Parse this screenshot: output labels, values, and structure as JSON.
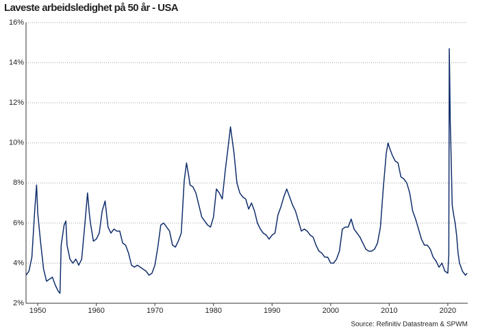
{
  "chart_data": {
    "type": "line",
    "title": "Laveste arbeidsledighet på 50 år - USA",
    "source": "Source: Refinitiv Datastream & SPWM",
    "color": "#0f2d6b",
    "grid": true,
    "x": [
      1948.0,
      1948.5,
      1949.0,
      1949.5,
      1949.8,
      1950.0,
      1950.5,
      1951.0,
      1951.5,
      1952.0,
      1952.5,
      1953.0,
      1953.5,
      1953.8,
      1954.0,
      1954.5,
      1954.8,
      1955.0,
      1955.5,
      1956.0,
      1956.5,
      1957.0,
      1957.5,
      1958.0,
      1958.5,
      1958.8,
      1959.0,
      1959.5,
      1960.0,
      1960.5,
      1961.0,
      1961.5,
      1962.0,
      1962.5,
      1963.0,
      1963.5,
      1964.0,
      1964.5,
      1965.0,
      1965.5,
      1966.0,
      1966.5,
      1967.0,
      1967.5,
      1968.0,
      1968.5,
      1969.0,
      1969.5,
      1970.0,
      1970.5,
      1971.0,
      1971.5,
      1972.0,
      1972.5,
      1973.0,
      1973.5,
      1974.0,
      1974.5,
      1975.0,
      1975.4,
      1975.8,
      1976.0,
      1976.5,
      1977.0,
      1977.5,
      1978.0,
      1978.5,
      1979.0,
      1979.5,
      1980.0,
      1980.5,
      1981.0,
      1981.5,
      1982.0,
      1982.5,
      1982.9,
      1983.5,
      1984.0,
      1984.5,
      1985.0,
      1985.5,
      1986.0,
      1986.5,
      1987.0,
      1987.5,
      1988.0,
      1988.5,
      1989.0,
      1989.5,
      1990.0,
      1990.5,
      1991.0,
      1991.5,
      1992.0,
      1992.5,
      1993.0,
      1993.5,
      1994.0,
      1994.5,
      1995.0,
      1995.5,
      1996.0,
      1996.5,
      1997.0,
      1997.5,
      1998.0,
      1998.5,
      1999.0,
      1999.5,
      2000.0,
      2000.5,
      2001.0,
      2001.5,
      2002.0,
      2002.5,
      2003.0,
      2003.5,
      2004.0,
      2004.5,
      2005.0,
      2005.5,
      2006.0,
      2006.5,
      2007.0,
      2007.5,
      2008.0,
      2008.5,
      2009.0,
      2009.5,
      2009.8,
      2010.0,
      2010.5,
      2011.0,
      2011.5,
      2012.0,
      2012.5,
      2013.0,
      2013.5,
      2014.0,
      2014.5,
      2015.0,
      2015.5,
      2016.0,
      2016.5,
      2017.0,
      2017.5,
      2018.0,
      2018.5,
      2019.0,
      2019.5,
      2020.0,
      2020.17,
      2020.25,
      2020.33,
      2020.42,
      2020.5,
      2020.75,
      2021.0,
      2021.25,
      2021.5,
      2021.75,
      2022.0,
      2022.5,
      2023.0,
      2023.3
    ],
    "values": [
      3.4,
      3.6,
      4.3,
      6.7,
      7.9,
      6.5,
      5.0,
      3.7,
      3.1,
      3.2,
      3.3,
      2.9,
      2.6,
      2.5,
      4.9,
      5.9,
      6.1,
      4.9,
      4.2,
      4.0,
      4.2,
      3.9,
      4.2,
      5.8,
      7.5,
      6.5,
      6.0,
      5.1,
      5.2,
      5.5,
      6.6,
      7.1,
      5.8,
      5.5,
      5.7,
      5.6,
      5.6,
      5.0,
      4.9,
      4.5,
      3.9,
      3.8,
      3.9,
      3.8,
      3.7,
      3.6,
      3.4,
      3.5,
      3.9,
      4.8,
      5.9,
      6.0,
      5.8,
      5.6,
      4.9,
      4.8,
      5.1,
      5.5,
      8.1,
      9.0,
      8.3,
      7.9,
      7.8,
      7.5,
      6.9,
      6.3,
      6.1,
      5.9,
      5.8,
      6.3,
      7.7,
      7.5,
      7.2,
      8.6,
      9.8,
      10.8,
      9.5,
      8.0,
      7.5,
      7.3,
      7.2,
      6.7,
      7.0,
      6.6,
      6.0,
      5.7,
      5.5,
      5.4,
      5.2,
      5.4,
      5.5,
      6.4,
      6.8,
      7.3,
      7.7,
      7.3,
      6.9,
      6.6,
      6.1,
      5.6,
      5.7,
      5.6,
      5.4,
      5.3,
      4.9,
      4.6,
      4.5,
      4.3,
      4.3,
      4.0,
      4.0,
      4.2,
      4.6,
      5.7,
      5.8,
      5.8,
      6.2,
      5.7,
      5.5,
      5.3,
      5.0,
      4.7,
      4.6,
      4.6,
      4.7,
      5.0,
      5.8,
      7.8,
      9.5,
      10.0,
      9.8,
      9.4,
      9.1,
      9.0,
      8.3,
      8.2,
      8.0,
      7.5,
      6.6,
      6.2,
      5.7,
      5.2,
      4.9,
      4.9,
      4.7,
      4.3,
      4.1,
      3.8,
      4.0,
      3.6,
      3.5,
      4.4,
      14.7,
      13.2,
      11.0,
      10.2,
      6.9,
      6.4,
      6.0,
      5.4,
      4.5,
      4.0,
      3.6,
      3.4,
      3.5
    ],
    "xlim": [
      1948,
      2023.4
    ],
    "ylim": [
      2,
      16
    ],
    "xticks": [
      1950,
      1960,
      1970,
      1980,
      1990,
      2000,
      2010,
      2020
    ],
    "yticks": [
      {
        "value": 2,
        "label": "2%"
      },
      {
        "value": 4,
        "label": "4%"
      },
      {
        "value": 6,
        "label": "6%"
      },
      {
        "value": 8,
        "label": "8%"
      },
      {
        "value": 10,
        "label": "10%"
      },
      {
        "value": 12,
        "label": "12%"
      },
      {
        "value": 14,
        "label": "14%"
      },
      {
        "value": 16,
        "label": "16%"
      }
    ]
  }
}
